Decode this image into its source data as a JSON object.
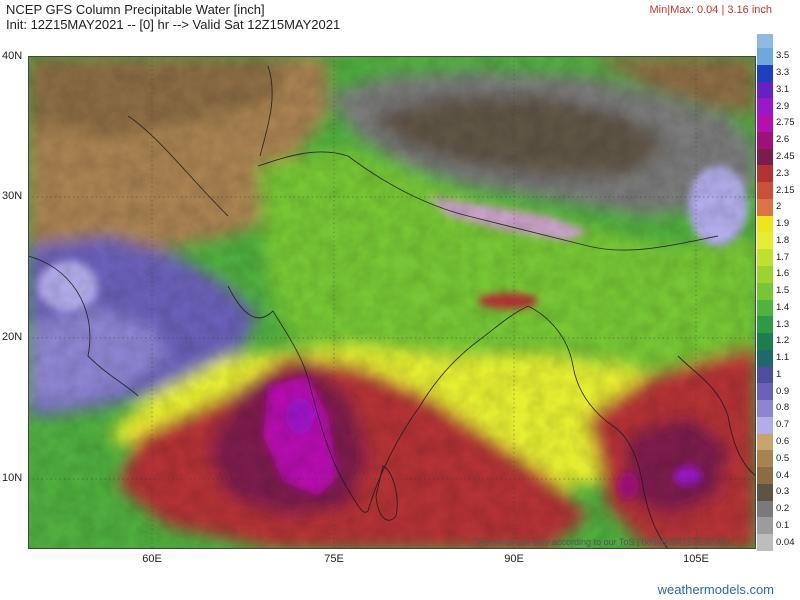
{
  "header": {
    "title": "NCEP GFS Column Precipitable Water [inch]",
    "init_line": "Init: 12Z15MAY2021 -- [0] hr --> Valid Sat 12Z15MAY2021",
    "minmax": "Min|Max: 0.04 | 3.16 inch"
  },
  "map": {
    "lat_labels": [
      "40N",
      "30N",
      "20N",
      "10N"
    ],
    "lon_labels": [
      "60E",
      "75E",
      "90E",
      "105E"
    ],
    "disclaimer": "Personal use only according to our ToS | 0d3890047E2E32V801"
  },
  "legend": {
    "labels": [
      "3.5",
      "3.3",
      "3.1",
      "2.9",
      "2.75",
      "2.6",
      "2.45",
      "2.3",
      "2.15",
      "2",
      "1.9",
      "1.8",
      "1.7",
      "1.6",
      "1.5",
      "1.4",
      "1.3",
      "1.2",
      "1.1",
      "1",
      "0.9",
      "0.8",
      "0.7",
      "0.6",
      "0.5",
      "0.4",
      "0.3",
      "0.2",
      "0.1",
      "0.04"
    ],
    "colors": [
      "#6fa8dc",
      "#1f3fbf",
      "#6a1fc4",
      "#9b17c9",
      "#b60fae",
      "#a0107a",
      "#7c1b4c",
      "#b33234",
      "#c9513a",
      "#dd7344",
      "#f0e41a",
      "#e6ee33",
      "#bfe02e",
      "#9ad42d",
      "#77c635",
      "#4fb33d",
      "#2f9a45",
      "#1f7c4f",
      "#1e6a6a",
      "#4d4f9e",
      "#6b61b8",
      "#8e85d2",
      "#b2acea",
      "#c8a36a",
      "#a98251",
      "#8b6c45",
      "#5e5444",
      "#7a7a7a",
      "#9c9c9c",
      "#bdbdbd"
    ]
  },
  "credit": "weathermodels.com"
}
